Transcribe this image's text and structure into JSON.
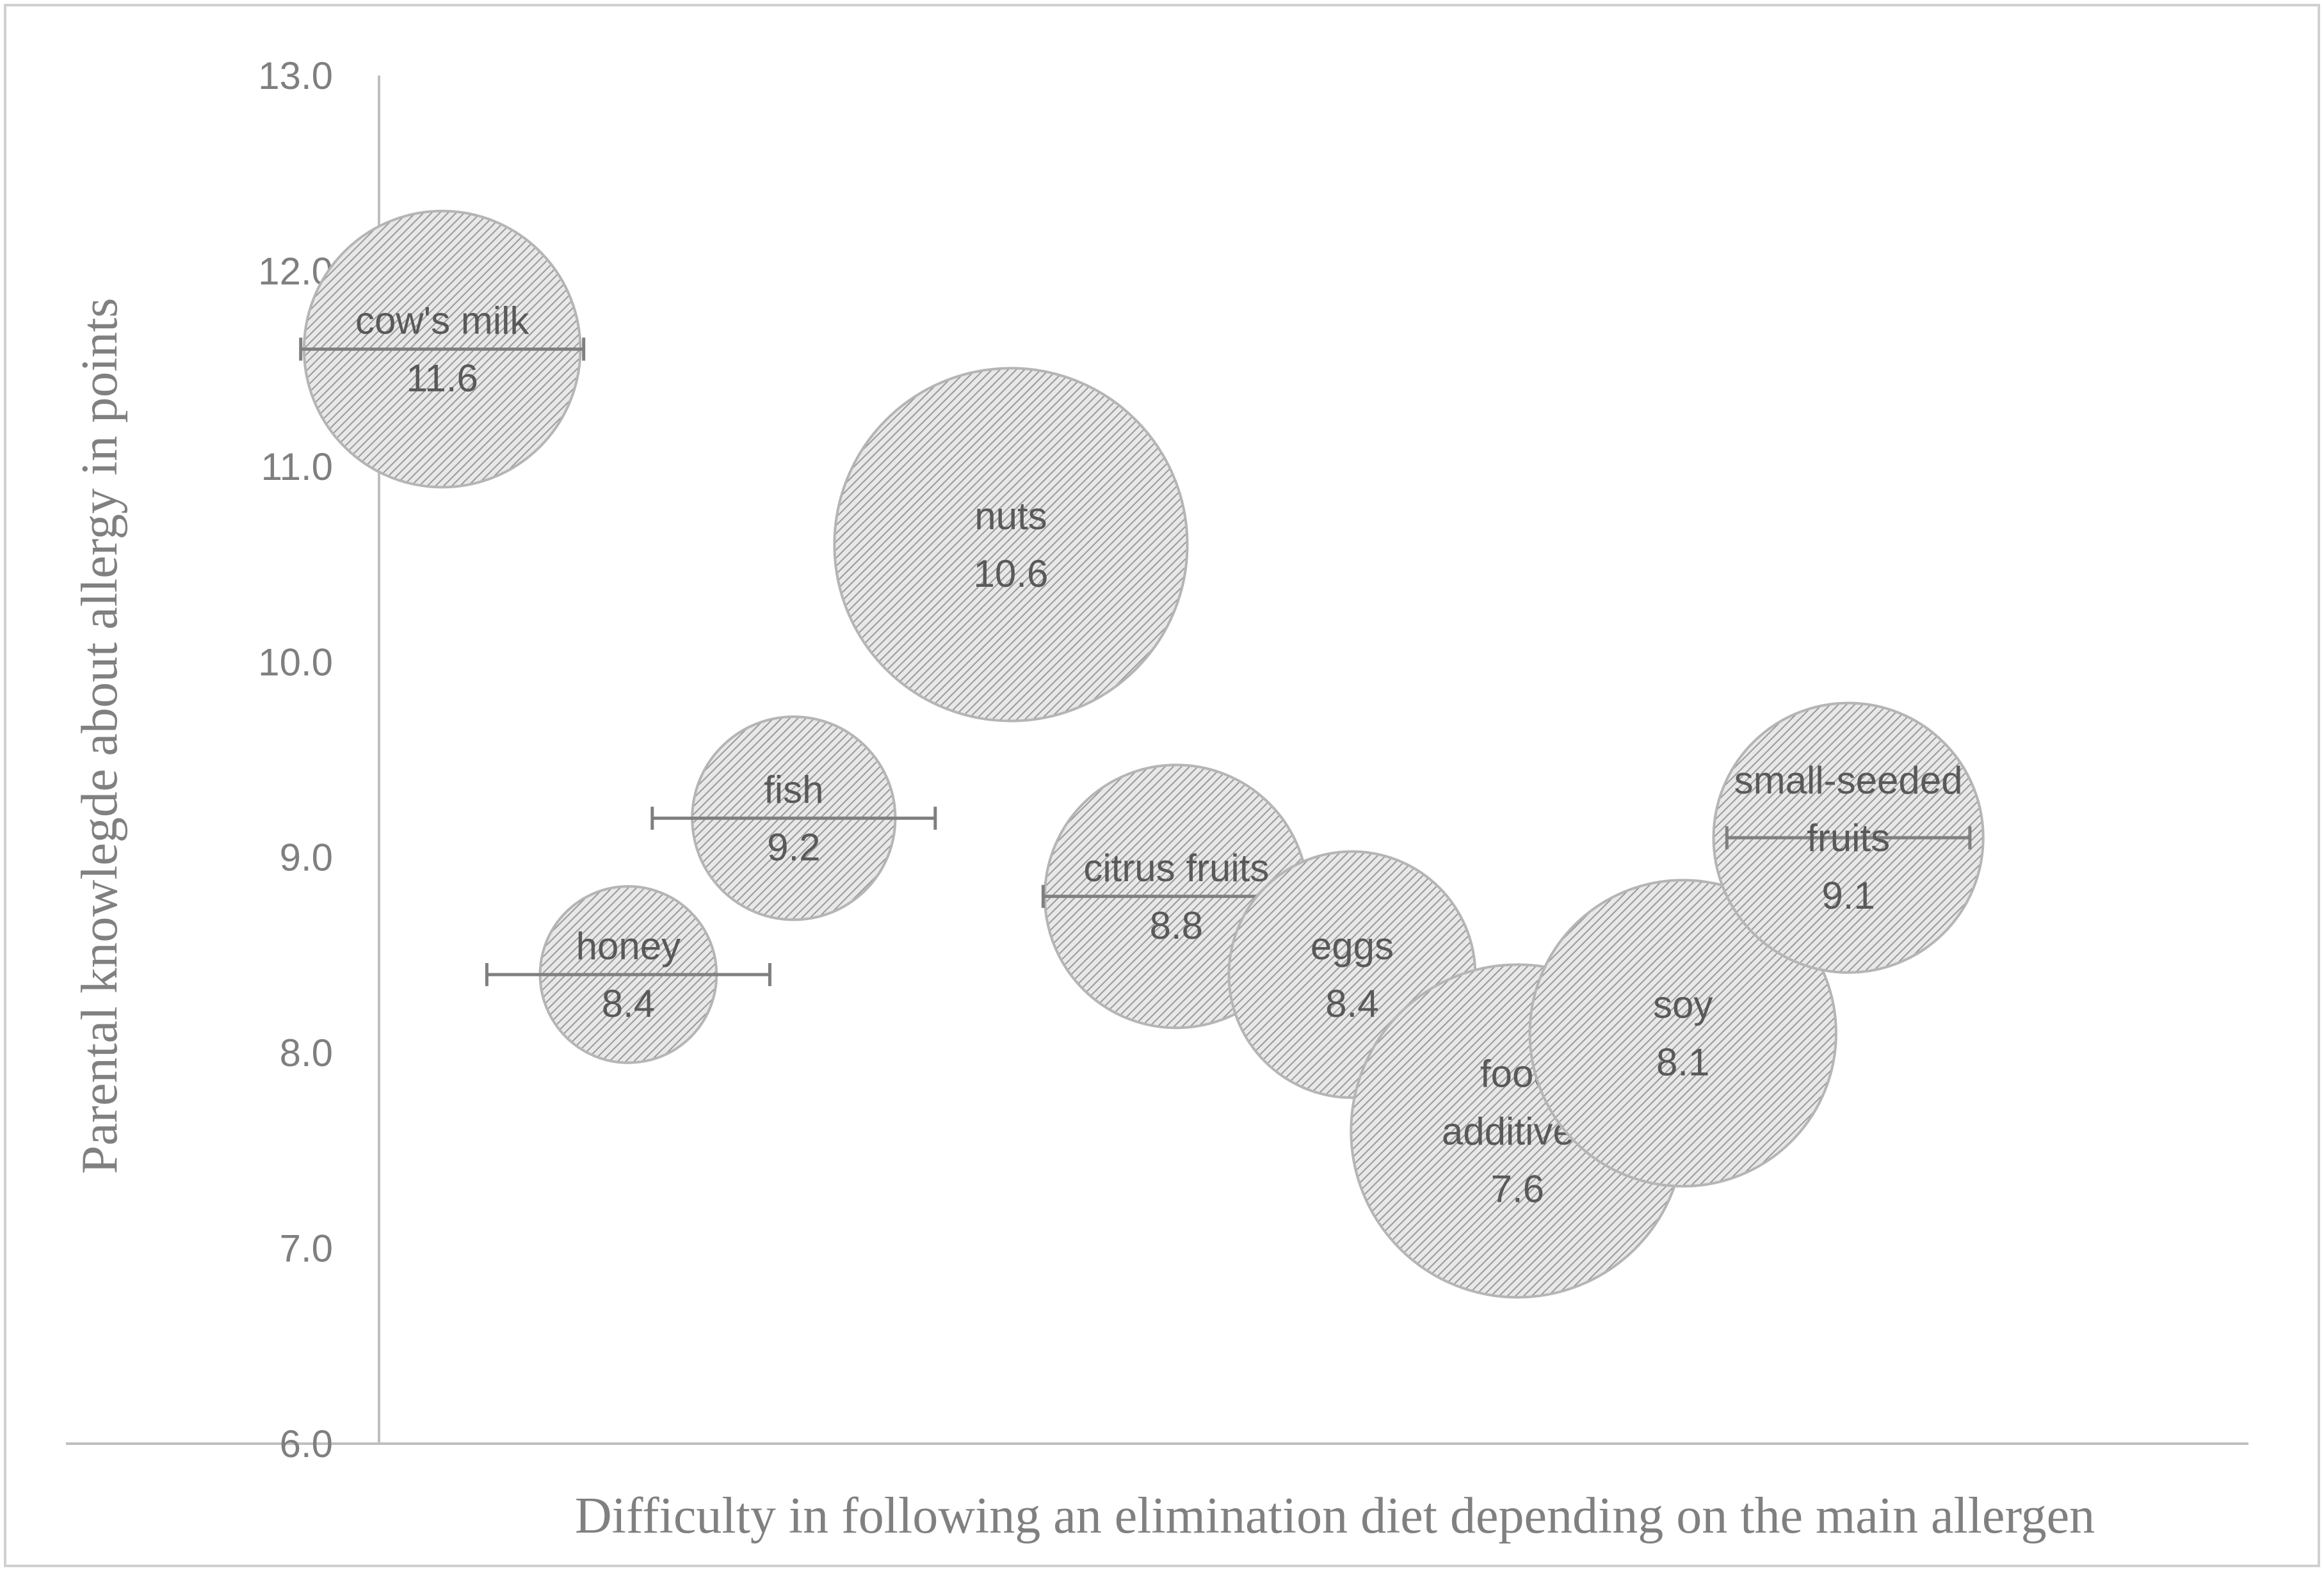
{
  "chart_data": {
    "type": "bubble",
    "xlabel": "Difficulty in following an elimination diet depending on the main allergen",
    "ylabel": "Parental knowlegde about allergy in points",
    "ylim": [
      6.0,
      13.0
    ],
    "y_ticks": [
      "6.0",
      "7.0",
      "8.0",
      "9.0",
      "10.0",
      "11.0",
      "12.0",
      "13.0"
    ],
    "x_range": [
      0,
      12
    ],
    "series": [
      {
        "name": "cow's milk",
        "label_lines": [
          "cow's milk"
        ],
        "x": 0.9,
        "y": 11.6,
        "value_label": "11.6",
        "size": 0.83,
        "error_x": 0.85
      },
      {
        "name": "nuts",
        "label_lines": [
          "nuts"
        ],
        "x": 3.65,
        "y": 10.6,
        "value_label": "10.6",
        "size": 1.06,
        "error_x": null
      },
      {
        "name": "fish",
        "label_lines": [
          "fish"
        ],
        "x": 2.6,
        "y": 9.2,
        "value_label": "9.2",
        "size": 0.61,
        "error_x": 0.85
      },
      {
        "name": "honey",
        "label_lines": [
          "honey"
        ],
        "x": 1.8,
        "y": 8.4,
        "value_label": "8.4",
        "size": 0.53,
        "error_x": 0.85
      },
      {
        "name": "citrus fruits",
        "label_lines": [
          "citrus fruits"
        ],
        "x": 4.45,
        "y": 8.8,
        "value_label": "8.8",
        "size": 0.79,
        "error_x": 0.8
      },
      {
        "name": "eggs",
        "label_lines": [
          "eggs"
        ],
        "x": 5.3,
        "y": 8.4,
        "value_label": "8.4",
        "size": 0.74,
        "error_x": null
      },
      {
        "name": "food additives",
        "label_lines": [
          "food",
          "additives"
        ],
        "x": 6.1,
        "y": 7.6,
        "value_label": "7.6",
        "size": 1.0,
        "error_x": null
      },
      {
        "name": "soy",
        "label_lines": [
          "soy"
        ],
        "x": 6.9,
        "y": 8.1,
        "value_label": "8.1",
        "size": 0.92,
        "error_x": null
      },
      {
        "name": "small-seeded fruits",
        "label_lines": [
          "small-seeded",
          "fruits"
        ],
        "x": 7.7,
        "y": 9.1,
        "value_label": "9.1",
        "size": 0.81,
        "error_x": 0.73
      }
    ],
    "legend": null,
    "grid": false
  },
  "style": {
    "axis_color": "#bfbfbf",
    "bubble_fill": "#e8e8e8",
    "bubble_hatch": "#9a9a9a",
    "bubble_stroke": "#b5b5b5",
    "errorbar_color": "#7f7f7f",
    "frame_color": "#d0d0d0"
  }
}
